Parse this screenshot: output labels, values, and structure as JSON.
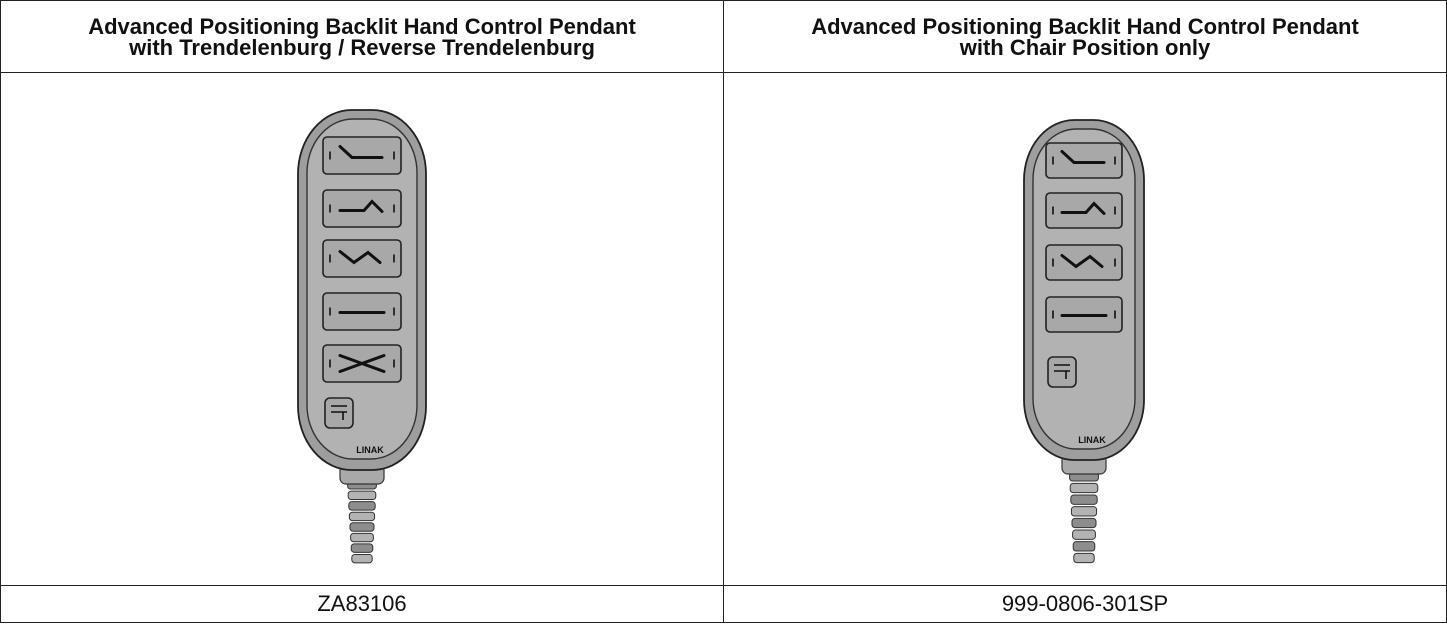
{
  "table": {
    "columns": [
      {
        "title": [
          "Advanced Positioning Backlit Hand Control Pendant",
          "with Trendelenburg / Reverse Trendelenburg"
        ],
        "brand": "LINAK",
        "part_number": "ZA83106"
      },
      {
        "title": [
          "Advanced Positioning Backlit Hand Control Pendant",
          "with Chair Position only"
        ],
        "brand": "LINAK",
        "part_number": "999-0806-301SP"
      }
    ]
  }
}
